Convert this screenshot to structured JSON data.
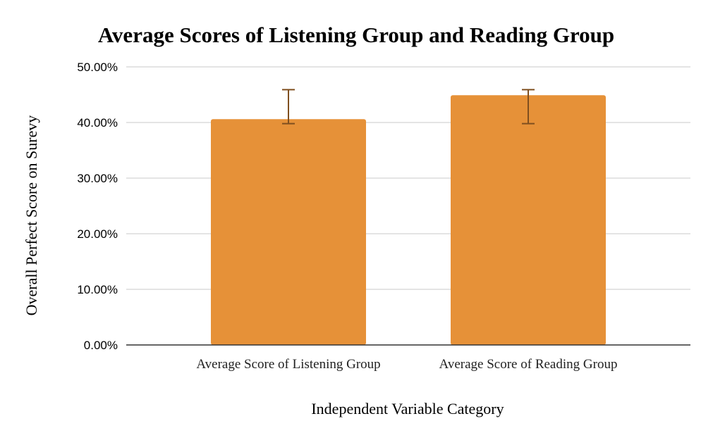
{
  "chart_data": {
    "type": "bar",
    "title": "Average Scores of Listening Group and Reading Group",
    "xlabel": "Independent Variable Category",
    "ylabel": "Overall Perfect Score on Surevy",
    "categories": [
      "Average Score of Listening Group",
      "Average Score of Reading Group"
    ],
    "values": [
      0.406,
      0.449
    ],
    "error_bars": [
      {
        "low": 0.398,
        "high": 0.459
      },
      {
        "low": 0.398,
        "high": 0.459
      }
    ],
    "ylim": [
      0,
      0.5
    ],
    "yticks": [
      0,
      0.1,
      0.2,
      0.3,
      0.4,
      0.5
    ],
    "ytick_labels": [
      "0.00%",
      "10.00%",
      "20.00%",
      "30.00%",
      "40.00%",
      "50.00%"
    ],
    "grid": true,
    "legend": "none",
    "colors": {
      "bar": "#E69138",
      "error_bar": "#7f4f1f",
      "grid": "#c8c8c8",
      "axis": "#333333"
    }
  }
}
